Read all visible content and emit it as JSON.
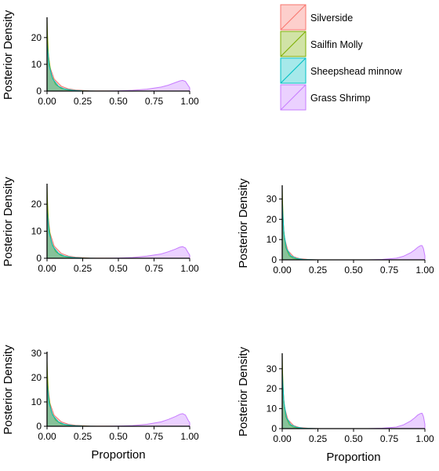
{
  "legend": {
    "items": [
      {
        "label": "Silverside",
        "color": "#f8766d"
      },
      {
        "label": "Sailfin Molly",
        "color": "#7cae00"
      },
      {
        "label": "Sheepshead minnow",
        "color": "#00bfc4"
      },
      {
        "label": "Grass Shrimp",
        "color": "#c77cff"
      }
    ],
    "placement": "top-right"
  },
  "axis_labels": {
    "y": "Posterior Density",
    "x": "Proportion"
  },
  "chart_data": [
    {
      "type": "area",
      "panel": "top-left",
      "xlim": [
        0,
        1
      ],
      "ylim": [
        0,
        27
      ],
      "xticks": [
        0,
        0.25,
        0.5,
        0.75,
        1
      ],
      "xtick_labels": [
        "0.00",
        "0.25",
        "0.50",
        "0.75",
        "1.00"
      ],
      "yticks": [
        0,
        10,
        20
      ],
      "ytick_labels": [
        "0",
        "10",
        "20"
      ],
      "ylabel": "Posterior Density",
      "xlabel": "",
      "series": [
        {
          "name": "Silverside",
          "x": [
            0,
            0.005,
            0.02,
            0.05,
            0.1,
            0.15,
            0.2,
            0.3,
            0.4,
            0.5
          ],
          "y": [
            21,
            16,
            9,
            4.5,
            1.8,
            0.8,
            0.4,
            0.1,
            0.03,
            0
          ]
        },
        {
          "name": "Sailfin Molly",
          "x": [
            0,
            0.003,
            0.01,
            0.03,
            0.06,
            0.1,
            0.15,
            0.2,
            0.3
          ],
          "y": [
            27,
            22,
            13,
            6,
            2.5,
            1,
            0.4,
            0.15,
            0
          ]
        },
        {
          "name": "Sheepshead minnow",
          "x": [
            0,
            0.005,
            0.015,
            0.04,
            0.08,
            0.12,
            0.18,
            0.25,
            0.35
          ],
          "y": [
            18,
            15,
            9.5,
            4.5,
            1.8,
            0.8,
            0.3,
            0.1,
            0
          ]
        },
        {
          "name": "Grass Shrimp",
          "x": [
            0.4,
            0.5,
            0.6,
            0.7,
            0.8,
            0.85,
            0.9,
            0.93,
            0.95,
            0.97,
            0.99,
            1.0
          ],
          "y": [
            0,
            0.1,
            0.3,
            0.7,
            1.5,
            2.2,
            3.2,
            3.8,
            4.0,
            3.6,
            2.0,
            1.2
          ]
        }
      ]
    },
    {
      "type": "area",
      "panel": "middle-left",
      "xlim": [
        0,
        1
      ],
      "ylim": [
        0,
        27
      ],
      "xticks": [
        0,
        0.25,
        0.5,
        0.75,
        1
      ],
      "xtick_labels": [
        "0.00",
        "0.25",
        "0.50",
        "0.75",
        "1.00"
      ],
      "yticks": [
        0,
        10,
        20
      ],
      "ytick_labels": [
        "0",
        "10",
        "20"
      ],
      "ylabel": "Posterior Density",
      "xlabel": "",
      "series": [
        {
          "name": "Silverside",
          "x": [
            0,
            0.005,
            0.02,
            0.05,
            0.1,
            0.15,
            0.2,
            0.3,
            0.4,
            0.5
          ],
          "y": [
            22,
            17,
            9.5,
            4.5,
            1.8,
            0.8,
            0.4,
            0.1,
            0.03,
            0
          ]
        },
        {
          "name": "Sailfin Molly",
          "x": [
            0,
            0.003,
            0.01,
            0.03,
            0.06,
            0.1,
            0.15,
            0.2,
            0.3
          ],
          "y": [
            27,
            22,
            13,
            6,
            2.5,
            1,
            0.4,
            0.15,
            0
          ]
        },
        {
          "name": "Sheepshead minnow",
          "x": [
            0,
            0.005,
            0.015,
            0.04,
            0.08,
            0.12,
            0.18,
            0.25,
            0.35
          ],
          "y": [
            18,
            15,
            9.5,
            4.5,
            1.8,
            0.8,
            0.3,
            0.1,
            0
          ]
        },
        {
          "name": "Grass Shrimp",
          "x": [
            0.4,
            0.5,
            0.6,
            0.7,
            0.8,
            0.85,
            0.9,
            0.93,
            0.95,
            0.97,
            0.99,
            1.0
          ],
          "y": [
            0,
            0.1,
            0.3,
            0.8,
            1.6,
            2.4,
            3.4,
            4.1,
            4.3,
            3.8,
            2.0,
            1.2
          ]
        }
      ]
    },
    {
      "type": "area",
      "panel": "middle-right",
      "xlim": [
        0,
        1
      ],
      "ylim": [
        0,
        36
      ],
      "xticks": [
        0,
        0.25,
        0.5,
        0.75,
        1
      ],
      "xtick_labels": [
        "0.00",
        "0.25",
        "0.50",
        "0.75",
        "1.00"
      ],
      "yticks": [
        0,
        10,
        20,
        30
      ],
      "ytick_labels": [
        "0",
        "10",
        "20",
        "30"
      ],
      "ylabel": "Posterior Density",
      "xlabel": "",
      "series": [
        {
          "name": "Silverside",
          "x": [
            0,
            0.004,
            0.015,
            0.04,
            0.08,
            0.12,
            0.18,
            0.25
          ],
          "y": [
            30,
            22,
            11,
            4.5,
            1.5,
            0.6,
            0.2,
            0
          ]
        },
        {
          "name": "Sailfin Molly",
          "x": [
            0,
            0.003,
            0.01,
            0.025,
            0.05,
            0.08,
            0.12,
            0.2
          ],
          "y": [
            36,
            28,
            15,
            6,
            2,
            0.7,
            0.2,
            0
          ]
        },
        {
          "name": "Sheepshead minnow",
          "x": [
            0,
            0.004,
            0.012,
            0.03,
            0.06,
            0.1,
            0.15,
            0.25
          ],
          "y": [
            28,
            23,
            13,
            5.5,
            2,
            0.7,
            0.2,
            0
          ]
        },
        {
          "name": "Grass Shrimp",
          "x": [
            0.6,
            0.7,
            0.8,
            0.85,
            0.9,
            0.93,
            0.95,
            0.97,
            0.98,
            0.99,
            1.0
          ],
          "y": [
            0,
            0.2,
            0.8,
            1.8,
            3.5,
            5.0,
            6.2,
            7.0,
            7.0,
            5.5,
            2.0
          ]
        }
      ]
    },
    {
      "type": "area",
      "panel": "bottom-left",
      "xlim": [
        0,
        1
      ],
      "ylim": [
        0,
        30
      ],
      "xticks": [
        0,
        0.25,
        0.5,
        0.75,
        1
      ],
      "xtick_labels": [
        "0.00",
        "0.25",
        "0.50",
        "0.75",
        "1.00"
      ],
      "yticks": [
        0,
        10,
        20,
        30
      ],
      "ytick_labels": [
        "0",
        "10",
        "20",
        "30"
      ],
      "ylabel": "Posterior Density",
      "xlabel": "Proportion",
      "series": [
        {
          "name": "Silverside",
          "x": [
            0,
            0.005,
            0.02,
            0.05,
            0.1,
            0.15,
            0.2,
            0.3,
            0.4,
            0.5
          ],
          "y": [
            22,
            17,
            9.5,
            4.5,
            1.8,
            0.8,
            0.4,
            0.1,
            0.03,
            0
          ]
        },
        {
          "name": "Sailfin Molly",
          "x": [
            0,
            0.003,
            0.01,
            0.03,
            0.06,
            0.1,
            0.15,
            0.2,
            0.3
          ],
          "y": [
            27,
            22,
            13,
            6,
            2.5,
            1,
            0.4,
            0.15,
            0
          ]
        },
        {
          "name": "Sheepshead minnow",
          "x": [
            0,
            0.005,
            0.015,
            0.04,
            0.08,
            0.12,
            0.18,
            0.25,
            0.35
          ],
          "y": [
            18,
            15,
            9.5,
            4.5,
            1.8,
            0.8,
            0.3,
            0.1,
            0
          ]
        },
        {
          "name": "Grass Shrimp",
          "x": [
            0.4,
            0.5,
            0.6,
            0.7,
            0.8,
            0.85,
            0.9,
            0.93,
            0.95,
            0.97,
            0.99,
            1.0
          ],
          "y": [
            0,
            0.1,
            0.3,
            0.8,
            1.8,
            2.8,
            4.0,
            4.9,
            5.2,
            4.6,
            2.4,
            1.5
          ]
        }
      ]
    },
    {
      "type": "area",
      "panel": "bottom-right",
      "xlim": [
        0,
        1
      ],
      "ylim": [
        0,
        37
      ],
      "xticks": [
        0,
        0.25,
        0.5,
        0.75,
        1
      ],
      "xtick_labels": [
        "0.00",
        "0.25",
        "0.50",
        "0.75",
        "1.00"
      ],
      "yticks": [
        0,
        10,
        20,
        30
      ],
      "ytick_labels": [
        "0",
        "10",
        "20",
        "30"
      ],
      "ylabel": "Posterior Density",
      "xlabel": "Proportion",
      "series": [
        {
          "name": "Silverside",
          "x": [
            0,
            0.004,
            0.015,
            0.04,
            0.08,
            0.12,
            0.18,
            0.25
          ],
          "y": [
            30,
            22,
            11,
            4.5,
            1.5,
            0.6,
            0.2,
            0
          ]
        },
        {
          "name": "Sailfin Molly",
          "x": [
            0,
            0.003,
            0.01,
            0.025,
            0.05,
            0.08,
            0.12,
            0.2
          ],
          "y": [
            37,
            28,
            15,
            6,
            2,
            0.7,
            0.2,
            0
          ]
        },
        {
          "name": "Sheepshead minnow",
          "x": [
            0,
            0.004,
            0.012,
            0.03,
            0.06,
            0.1,
            0.15,
            0.25
          ],
          "y": [
            28,
            23,
            13,
            5.5,
            2,
            0.7,
            0.2,
            0
          ]
        },
        {
          "name": "Grass Shrimp",
          "x": [
            0.6,
            0.7,
            0.8,
            0.85,
            0.9,
            0.93,
            0.95,
            0.97,
            0.98,
            0.99,
            1.0
          ],
          "y": [
            0,
            0.2,
            0.8,
            1.9,
            3.8,
            5.5,
            6.8,
            7.6,
            7.7,
            6.0,
            2.2
          ]
        }
      ]
    }
  ]
}
